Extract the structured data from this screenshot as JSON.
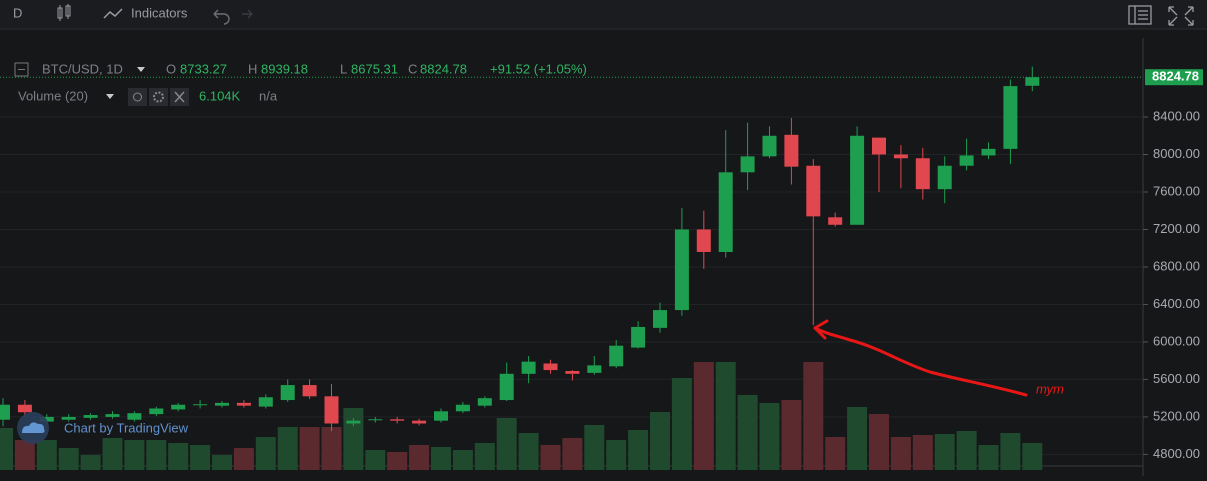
{
  "toolbar": {
    "interval": "D",
    "indicators": "Indicators"
  },
  "chart_data": {
    "type": "candlestick",
    "legend": {
      "symbol": "BTC/USD, 1D",
      "open_label": "O",
      "high_label": "H",
      "low_label": "L",
      "close_label": "C",
      "change": "+91.52 (+1.05%)"
    },
    "volume_legend": {
      "title": "Volume (20)",
      "value": "6.104K",
      "ma": "n/a"
    },
    "watermark": "Chart by TradingView",
    "annotation": "тут",
    "up_color": "#1e9e4f",
    "down_color": "#e0474f",
    "volume_up_color": "#1f4a2e",
    "volume_down_color": "#5a2a2f",
    "open": [
      5170,
      5330,
      5150,
      5170,
      5190,
      5200,
      5170,
      5230,
      5280,
      5330,
      5320,
      5350,
      5310,
      5380,
      5540,
      5420,
      5130,
      5170,
      5175,
      5160,
      5160,
      5260,
      5320,
      5380,
      5660,
      5770,
      5690,
      5670,
      5740,
      5940,
      6150,
      6340,
      7200,
      6960,
      7810,
      7980,
      8210,
      7880,
      7330,
      7250,
      8180,
      8000,
      7960,
      7630,
      7880,
      7990,
      8060,
      8733.27
    ],
    "high": [
      5400,
      5380,
      5230,
      5230,
      5240,
      5260,
      5260,
      5310,
      5350,
      5380,
      5370,
      5380,
      5440,
      5600,
      5600,
      5550,
      5190,
      5200,
      5200,
      5180,
      5290,
      5360,
      5420,
      5780,
      5850,
      5810,
      5700,
      5850,
      6020,
      6220,
      6420,
      7430,
      7400,
      8260,
      8340,
      8300,
      8390,
      7950,
      7380,
      8300,
      8180,
      8100,
      8070,
      7980,
      8170,
      8130,
      8800,
      8939.18
    ],
    "low": [
      5100,
      5200,
      5120,
      5150,
      5170,
      5180,
      5150,
      5210,
      5260,
      5290,
      5300,
      5300,
      5290,
      5360,
      5390,
      5050,
      5100,
      5140,
      5130,
      5110,
      5140,
      5240,
      5300,
      5370,
      5560,
      5660,
      5590,
      5650,
      5720,
      5930,
      6100,
      6280,
      6780,
      6900,
      7620,
      7960,
      7680,
      6180,
      7230,
      7250,
      7600,
      7640,
      7520,
      7480,
      7830,
      7950,
      7900,
      8675.31
    ],
    "close": [
      5330,
      5250,
      5200,
      5200,
      5220,
      5230,
      5240,
      5290,
      5330,
      5335,
      5350,
      5320,
      5410,
      5540,
      5420,
      5130,
      5160,
      5175,
      5160,
      5130,
      5260,
      5330,
      5400,
      5660,
      5790,
      5700,
      5660,
      5750,
      5960,
      6160,
      6340,
      7200,
      6960,
      7810,
      7980,
      8200,
      7870,
      7340,
      7250,
      8200,
      8000,
      7960,
      7630,
      7880,
      7990,
      8060,
      8730,
      8824.78
    ],
    "volume": [
      10.5,
      7.5,
      7.5,
      5.5,
      3.75,
      8,
      7.5,
      7.5,
      6.75,
      6.25,
      3.75,
      5.5,
      8.25,
      10.75,
      10.75,
      10.75,
      15.5,
      5,
      4.5,
      6.25,
      5.75,
      5,
      6.75,
      13,
      9.25,
      6.25,
      8,
      11.25,
      7.5,
      10,
      14.5,
      23,
      27,
      27,
      18.75,
      16.75,
      17.5,
      27,
      8.25,
      15.75,
      14,
      8.25,
      8.75,
      9,
      9.75,
      6.25,
      9.25,
      6.75
    ],
    "volume_lim": [
      0,
      30
    ],
    "ylim": [
      4655,
      9243
    ],
    "yticks": [
      {
        "value": 4800,
        "label": "4800.00"
      },
      {
        "value": 5200,
        "label": "5200.00"
      },
      {
        "value": 5600,
        "label": "5600.00"
      },
      {
        "value": 6000,
        "label": "6000.00"
      },
      {
        "value": 6400,
        "label": "6400.00"
      },
      {
        "value": 6800,
        "label": "6800.00"
      },
      {
        "value": 7200,
        "label": "7200.00"
      },
      {
        "value": 7600,
        "label": "7600.00"
      },
      {
        "value": 8000,
        "label": "8000.00"
      },
      {
        "value": 8400,
        "label": "8400.00"
      }
    ],
    "grid": true
  }
}
